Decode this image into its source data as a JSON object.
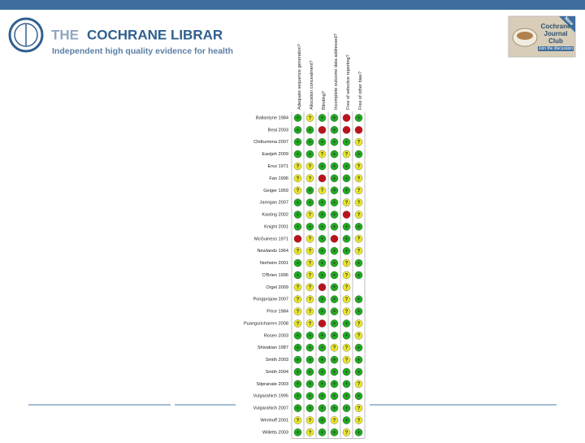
{
  "header": {
    "title_lead": "THE",
    "title_main": "COCHRANE LIBRAR",
    "subtitle": "Independent high quality evidence for health c"
  },
  "badge": {
    "corner": "New",
    "title": "Cochrane Journal Club",
    "action": "Join the discussion"
  },
  "table": {
    "columns": [
      "Adequate sequence generation?",
      "Allocation concealment?",
      "Blinding?",
      "Incomplete outcome data addressed?",
      "Free of selective reporting?",
      "Free of other bias?"
    ],
    "rows": [
      {
        "study": "Ballantyne 1984",
        "judgments": [
          "+",
          "?",
          "+",
          "+",
          "-",
          "+"
        ]
      },
      {
        "study": "Beal 2003",
        "judgments": [
          "+",
          "+",
          "-",
          "+",
          "-",
          "-"
        ]
      },
      {
        "study": "Chitturmma 2007",
        "judgments": [
          "+",
          "+",
          "+",
          "+",
          "+",
          "?"
        ]
      },
      {
        "study": "Eastjeh 2009",
        "judgments": [
          "+",
          "+",
          "?",
          "+",
          "?",
          "+"
        ]
      },
      {
        "study": "Eroz 1971",
        "judgments": [
          "?",
          "?",
          "+",
          "+",
          "+",
          "?"
        ]
      },
      {
        "study": "Fan 1996",
        "judgments": [
          "?",
          "?",
          "-",
          "+",
          "+",
          "?"
        ]
      },
      {
        "study": "Geiger 1959",
        "judgments": [
          "?",
          "+",
          "?",
          "+",
          "+",
          "?"
        ]
      },
      {
        "study": "Jarnigan 2007",
        "judgments": [
          "+",
          "+",
          "+",
          "+",
          "?",
          "?"
        ]
      },
      {
        "study": "Kasting 2002",
        "judgments": [
          "+",
          "?",
          "+",
          "+",
          "-",
          "?"
        ]
      },
      {
        "study": "Knight 2001",
        "judgments": [
          "+",
          "+",
          "+",
          "+",
          "+",
          "+"
        ]
      },
      {
        "study": "McGuiness 1971",
        "judgments": [
          "-",
          "?",
          "+",
          "-",
          "+",
          "?"
        ]
      },
      {
        "study": "Newlands 1964",
        "judgments": [
          "?",
          "?",
          "+",
          "+",
          "+",
          "?"
        ]
      },
      {
        "study": "Norheim 2001",
        "judgments": [
          "+",
          "?",
          "+",
          "+",
          "?",
          "+"
        ]
      },
      {
        "study": "O'Brien 1996",
        "judgments": [
          "+",
          "?",
          "+",
          "+",
          "?",
          "+"
        ]
      },
      {
        "study": "Orgel 2009",
        "judgments": [
          "?",
          "?",
          "-",
          "+",
          "?",
          null
        ]
      },
      {
        "study": "Pongprajow 2007",
        "judgments": [
          "?",
          "?",
          "+",
          "+",
          "?",
          "+"
        ]
      },
      {
        "study": "Price 1984",
        "judgments": [
          "?",
          "?",
          "+",
          "+",
          "?",
          "+"
        ]
      },
      {
        "study": "Puangsricharern 2008",
        "judgments": [
          "?",
          "?",
          "-",
          "+",
          "+",
          "?"
        ]
      },
      {
        "study": "Rosen 2003",
        "judgments": [
          "+",
          "+",
          "+",
          "+",
          "+",
          "?"
        ]
      },
      {
        "study": "Shivakian 1987",
        "judgments": [
          "+",
          "+",
          "+",
          "?",
          "?",
          "+"
        ]
      },
      {
        "study": "Smith 2003",
        "judgments": [
          "+",
          "+",
          "+",
          "+",
          "?",
          "+"
        ]
      },
      {
        "study": "Smith 2004",
        "judgments": [
          "+",
          "+",
          "+",
          "+",
          "+",
          "+"
        ]
      },
      {
        "study": "Stipranate 2003",
        "judgments": [
          "+",
          "+",
          "+",
          "+",
          "+",
          "?"
        ]
      },
      {
        "study": "Vulgarahich 1995",
        "judgments": [
          "+",
          "+",
          "+",
          "+",
          "+",
          "+"
        ]
      },
      {
        "study": "Vulgarahich 2007",
        "judgments": [
          "+",
          "+",
          "+",
          "+",
          "+",
          "?"
        ]
      },
      {
        "study": "Wenhoff 2001",
        "judgments": [
          "?",
          "?",
          "+",
          "?",
          "+",
          "?"
        ]
      },
      {
        "study": "Willetts 2003",
        "judgments": [
          "+",
          "?",
          "+",
          "+",
          "?",
          "+"
        ]
      }
    ]
  }
}
